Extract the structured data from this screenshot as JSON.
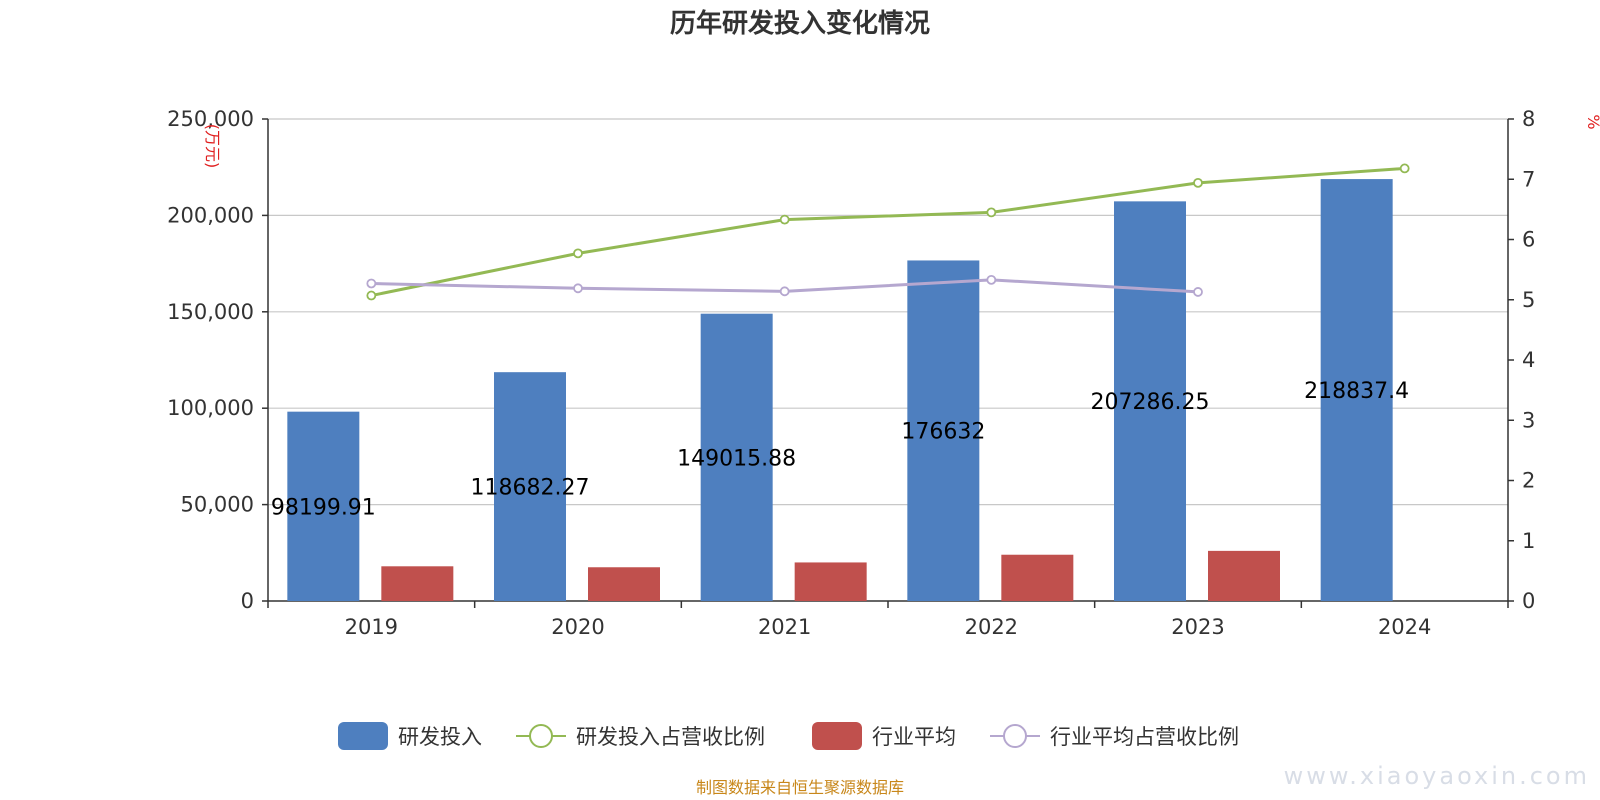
{
  "chart_data": {
    "type": "bar",
    "title": "历年研发投入变化情况",
    "categories": [
      "2019",
      "2020",
      "2021",
      "2022",
      "2023",
      "2024"
    ],
    "y_left": {
      "unit": "(万元)",
      "min": 0,
      "max": 250000,
      "ticks": [
        "0",
        "50,000",
        "100,000",
        "150,000",
        "200,000",
        "250,000"
      ]
    },
    "y_right": {
      "unit": "%",
      "min": 0,
      "max": 8,
      "ticks": [
        "0",
        "1",
        "2",
        "3",
        "4",
        "5",
        "6",
        "7",
        "8"
      ]
    },
    "grid": true,
    "series": [
      {
        "name": "研发投入",
        "kind": "bar",
        "axis": "left",
        "color": "#4e7fbf",
        "values": [
          98199.91,
          118682.27,
          149015.88,
          176632,
          207286.25,
          218837.4
        ],
        "labels": [
          "98199.91",
          "118682.27",
          "149015.88",
          "176632",
          "207286.25",
          "218837.4"
        ]
      },
      {
        "name": "研发投入占营收比例",
        "kind": "line",
        "axis": "right",
        "color": "#93b954",
        "values": [
          5.07,
          5.77,
          6.33,
          6.45,
          6.94,
          7.18
        ]
      },
      {
        "name": "行业平均",
        "kind": "bar",
        "axis": "left",
        "color": "#c0504d",
        "values": [
          18000,
          17500,
          20000,
          24000,
          26000,
          null
        ]
      },
      {
        "name": "行业平均占营收比例",
        "kind": "line",
        "axis": "right",
        "color": "#b5a7cf",
        "values": [
          5.27,
          5.19,
          5.14,
          5.33,
          5.13,
          null
        ]
      }
    ],
    "legend_position": "bottom-center"
  },
  "footer": {
    "source": "制图数据来自恒生聚源数据库",
    "watermark": "www.xiaoyaoxin.com"
  }
}
